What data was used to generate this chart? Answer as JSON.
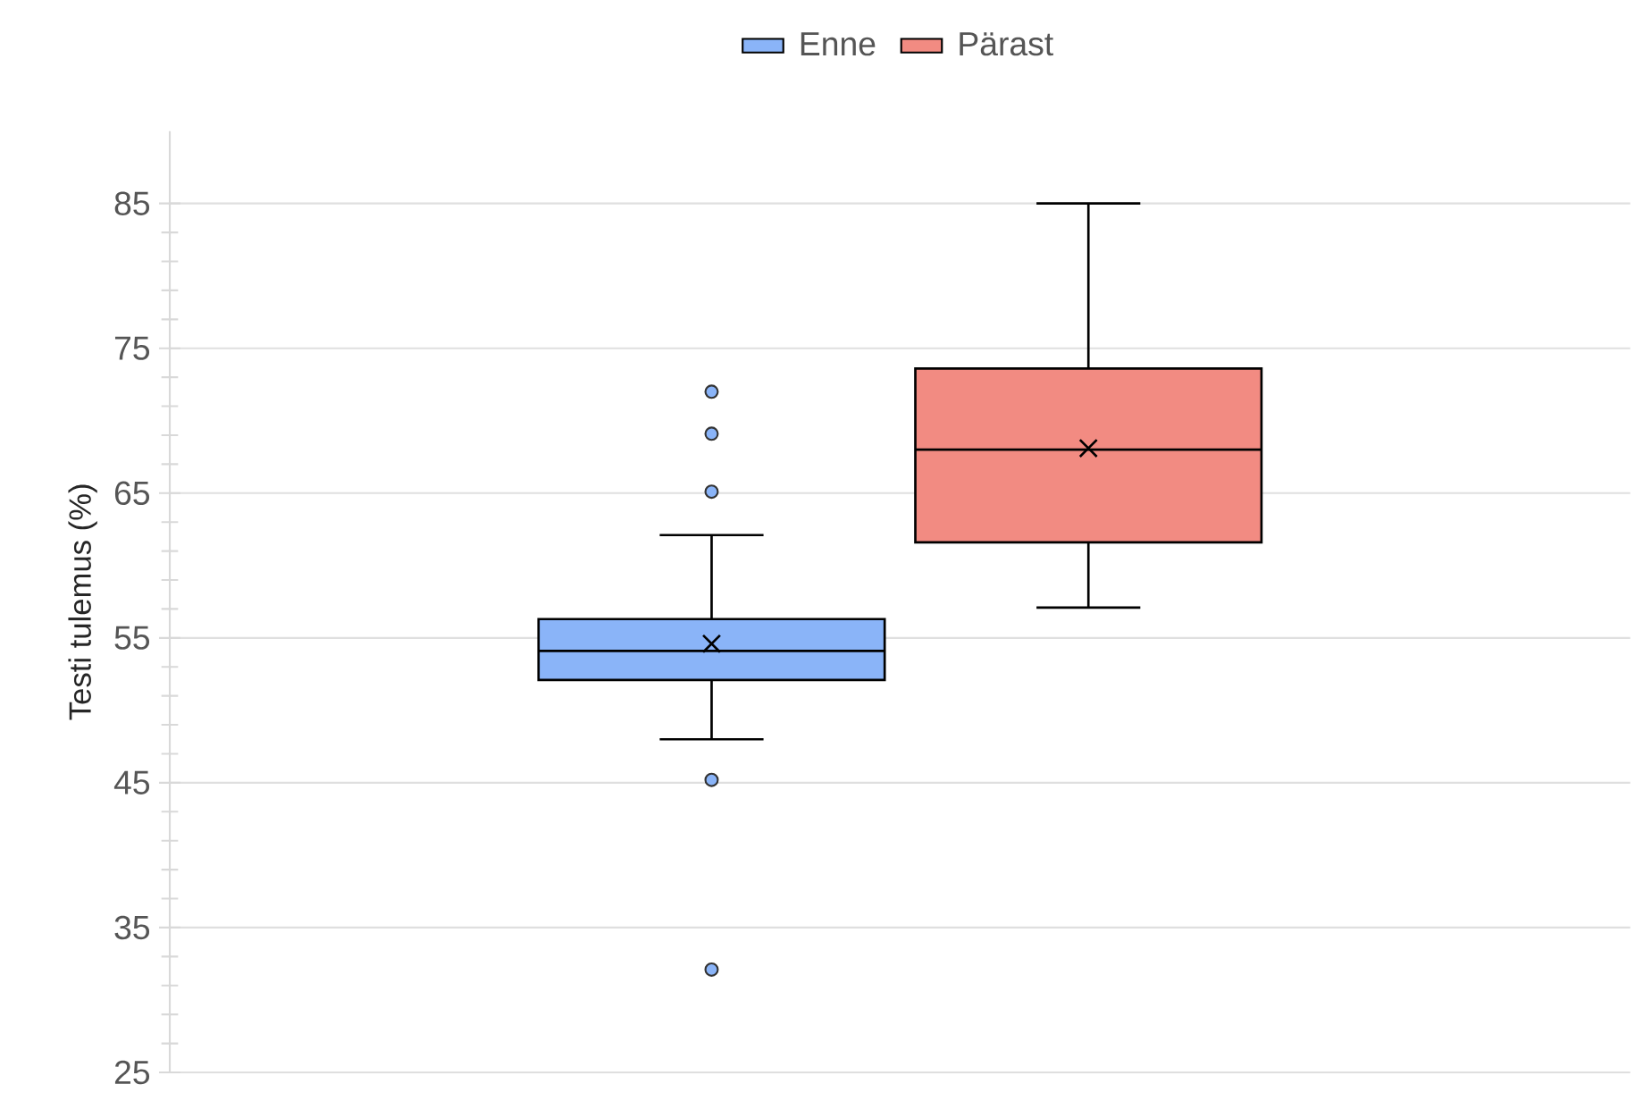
{
  "chart_data": {
    "type": "box",
    "categories": [
      null
    ],
    "ylabel": "Testi tulemus (%)",
    "ylim": [
      25,
      90
    ],
    "yticks": [
      25,
      35,
      45,
      55,
      65,
      75,
      85
    ],
    "grid": "y",
    "legend": "top",
    "series": [
      {
        "name": "Enne",
        "color": "#8ab4f8",
        "boxes": [
          {
            "low": 48,
            "q1": 52.1,
            "median": 54.1,
            "q3": 56.3,
            "high": 62.1,
            "mean": 54.6,
            "outliers": [
              72,
              69.1,
              65.1,
              45.2,
              32.1
            ]
          }
        ]
      },
      {
        "name": "Pärast",
        "color": "#f28b82",
        "boxes": [
          {
            "low": 57.1,
            "q1": 61.6,
            "median": 68,
            "q3": 73.6,
            "high": 85,
            "mean": 68.1
          }
        ]
      }
    ]
  }
}
